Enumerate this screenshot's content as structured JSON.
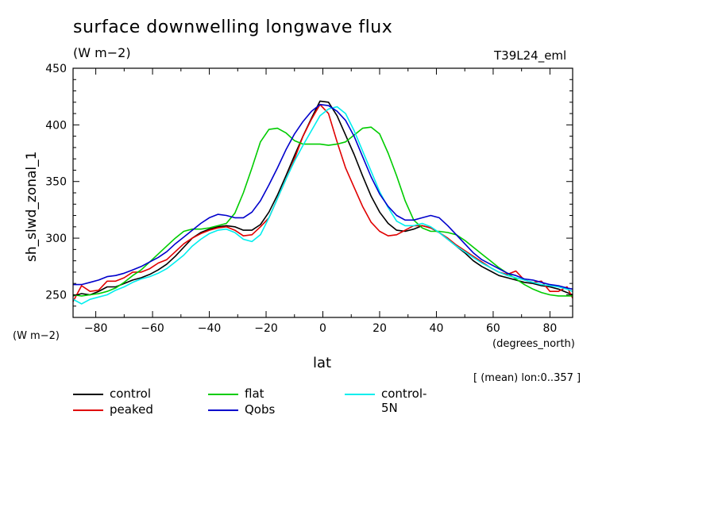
{
  "chart_data": {
    "type": "line",
    "title": "surface downwelling longwave flux",
    "units": "(W m−2)",
    "dataset": "T39L24_eml",
    "ylabel": "sh_slwd_zonal_1",
    "y_units_label": "(W m−2)",
    "xlabel": "lat",
    "x_units_label": "(degrees_north)",
    "note": "[ (mean) lon:0..357 ]",
    "xlim": [
      -88,
      88
    ],
    "ylim": [
      230,
      450
    ],
    "xticks": [
      -80,
      -60,
      -40,
      -20,
      0,
      20,
      40,
      60,
      80
    ],
    "yticks": [
      250,
      300,
      350,
      400,
      450
    ],
    "grid": false,
    "legend_placement": "bottom",
    "x": [
      -88,
      -85,
      -82,
      -79,
      -76,
      -73,
      -70,
      -67,
      -64,
      -61,
      -58,
      -55,
      -52,
      -49,
      -46,
      -43,
      -40,
      -37,
      -34,
      -31,
      -28,
      -25,
      -22,
      -19,
      -16,
      -13,
      -10,
      -7,
      -4,
      -1,
      2,
      5,
      8,
      11,
      14,
      17,
      20,
      23,
      26,
      29,
      32,
      35,
      38,
      41,
      44,
      47,
      50,
      53,
      56,
      59,
      62,
      65,
      68,
      71,
      74,
      77,
      80,
      83,
      86,
      88
    ],
    "series": [
      {
        "name": "control",
        "color": "#000000",
        "values": [
          249,
          251,
          250,
          253,
          257,
          257,
          260,
          263,
          265,
          268,
          272,
          277,
          284,
          292,
          300,
          305,
          308,
          310,
          311,
          310,
          307,
          307,
          312,
          323,
          338,
          355,
          373,
          390,
          406,
          421,
          420,
          408,
          391,
          374,
          355,
          337,
          323,
          313,
          307,
          306,
          308,
          311,
          309,
          305,
          299,
          293,
          287,
          280,
          275,
          271,
          267,
          265,
          263,
          261,
          260,
          258,
          257,
          255,
          252,
          250
        ]
      },
      {
        "name": "peaked",
        "color": "#e00000",
        "values": [
          244,
          258,
          253,
          254,
          262,
          262,
          265,
          270,
          270,
          273,
          278,
          281,
          288,
          295,
          300,
          304,
          307,
          309,
          310,
          307,
          302,
          303,
          310,
          318,
          335,
          352,
          370,
          390,
          405,
          418,
          410,
          385,
          362,
          345,
          328,
          314,
          306,
          302,
          303,
          307,
          311,
          311,
          309,
          305,
          300,
          294,
          289,
          284,
          279,
          274,
          270,
          268,
          271,
          263,
          261,
          262,
          253,
          253,
          257,
          247
        ]
      },
      {
        "name": "flat",
        "color": "#00cc00",
        "values": [
          250,
          249,
          250,
          251,
          253,
          256,
          261,
          267,
          272,
          279,
          286,
          293,
          300,
          306,
          308,
          308,
          309,
          311,
          313,
          322,
          340,
          362,
          385,
          396,
          397,
          393,
          386,
          383,
          383,
          383,
          382,
          383,
          385,
          391,
          397,
          398,
          392,
          375,
          355,
          333,
          316,
          309,
          306,
          306,
          305,
          303,
          298,
          292,
          286,
          280,
          274,
          269,
          264,
          259,
          255,
          252,
          250,
          249,
          249,
          249
        ]
      },
      {
        "name": "control-5N",
        "color": "#00eeee",
        "values": [
          246,
          242,
          246,
          248,
          250,
          254,
          257,
          261,
          264,
          266,
          269,
          273,
          279,
          285,
          293,
          299,
          304,
          307,
          308,
          305,
          299,
          297,
          303,
          318,
          335,
          352,
          368,
          382,
          395,
          408,
          414,
          416,
          410,
          395,
          377,
          359,
          341,
          327,
          315,
          311,
          311,
          313,
          310,
          305,
          299,
          293,
          288,
          283,
          278,
          274,
          270,
          267,
          265,
          263,
          261,
          259,
          258,
          257,
          255,
          253
        ]
      },
      {
        "name": "Qobs",
        "color": "#0000cc",
        "values": [
          259,
          259,
          261,
          263,
          266,
          267,
          269,
          272,
          275,
          279,
          283,
          288,
          295,
          301,
          307,
          313,
          318,
          321,
          320,
          318,
          318,
          323,
          333,
          347,
          362,
          378,
          392,
          403,
          412,
          418,
          417,
          412,
          404,
          390,
          372,
          354,
          339,
          328,
          320,
          316,
          316,
          318,
          320,
          318,
          311,
          303,
          295,
          287,
          281,
          277,
          273,
          269,
          267,
          264,
          263,
          261,
          259,
          258,
          256,
          255
        ]
      }
    ]
  }
}
